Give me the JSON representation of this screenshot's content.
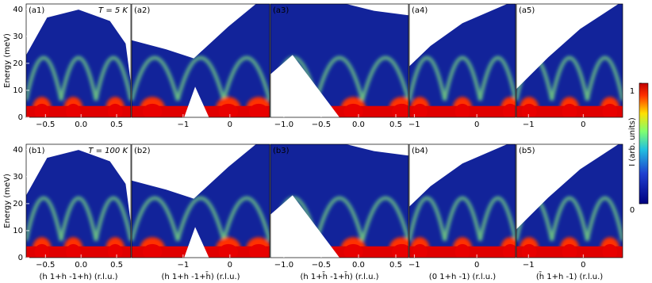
{
  "chart_data": [
    {
      "type": "heatmap",
      "label": "(a1)",
      "annotation": "T = 5 K",
      "ylabel": "Energy (meV)",
      "xlim": [
        -0.77,
        0.7
      ],
      "xticks": [
        {
          "value": -0.5,
          "label": "−0.5"
        },
        {
          "value": 0,
          "label": "0.0"
        },
        {
          "value": 0.5,
          "label": "0.5"
        }
      ],
      "ylim": [
        0,
        42
      ],
      "yticks": [
        0,
        10,
        20,
        30,
        40
      ]
    },
    {
      "type": "heatmap",
      "label": "(a2)",
      "xlim": [
        -2.1,
        0.85
      ],
      "xticks": [
        {
          "value": -1,
          "label": "−1"
        },
        0
      ],
      "ylim": [
        0,
        42
      ]
    },
    {
      "type": "heatmap",
      "label": "(a3)",
      "xlim": [
        -1.18,
        0.67
      ],
      "xticks": [
        {
          "value": -1,
          "label": "−1.0"
        },
        {
          "value": -0.5,
          "label": "−0.5"
        },
        {
          "value": 0,
          "label": "0.0"
        },
        {
          "value": 0.5,
          "label": "0.5"
        }
      ],
      "ylim": [
        0,
        42
      ]
    },
    {
      "type": "heatmap",
      "label": "(a4)",
      "xlim": [
        -1.08,
        0.62
      ],
      "xticks": [
        {
          "value": -1,
          "label": "−1"
        },
        0
      ],
      "ylim": [
        0,
        42
      ]
    },
    {
      "type": "heatmap",
      "label": "(a5)",
      "xlim": [
        -1.22,
        0.72
      ],
      "xticks": [
        {
          "value": -1,
          "label": "−1"
        },
        0
      ],
      "ylim": [
        0,
        42
      ]
    },
    {
      "type": "heatmap",
      "label": "(b1)",
      "annotation": "T = 100 K",
      "ylabel": "Energy (meV)",
      "xlabel": "(h 1+h -1+h) (r.l.u.)",
      "xlim": [
        -0.77,
        0.7
      ],
      "xticks": [
        {
          "value": -0.5,
          "label": "−0.5"
        },
        {
          "value": 0,
          "label": "0.0"
        },
        {
          "value": 0.5,
          "label": "0.5"
        }
      ],
      "ylim": [
        0,
        42
      ],
      "yticks": [
        0,
        10,
        20,
        30,
        40
      ]
    },
    {
      "type": "heatmap",
      "label": "(b2)",
      "xlabel": "(h 1+h -1+h̄) (r.l.u.)",
      "xlim": [
        -2.1,
        0.85
      ],
      "xticks": [
        {
          "value": -1,
          "label": "−1"
        },
        0
      ],
      "ylim": [
        0,
        42
      ]
    },
    {
      "type": "heatmap",
      "label": "(b3)",
      "xlabel": "(h 1+h̄ -1+h̄) (r.l.u.)",
      "xlim": [
        -1.18,
        0.67
      ],
      "xticks": [
        {
          "value": -1,
          "label": "−1.0"
        },
        {
          "value": -0.5,
          "label": "−0.5"
        },
        {
          "value": 0,
          "label": "0.0"
        },
        {
          "value": 0.5,
          "label": "0.5"
        }
      ],
      "ylim": [
        0,
        42
      ]
    },
    {
      "type": "heatmap",
      "label": "(b4)",
      "xlabel": "(0 1+h -1) (r.l.u.)",
      "xlim": [
        -1.08,
        0.62
      ],
      "xticks": [
        {
          "value": -1,
          "label": "−1"
        },
        0
      ],
      "ylim": [
        0,
        42
      ]
    },
    {
      "type": "heatmap",
      "label": "(b5)",
      "xlabel": "(h̄ 1+h -1) (r.l.u.)",
      "xlim": [
        -1.22,
        0.72
      ],
      "xticks": [
        {
          "value": -1,
          "label": "−1"
        },
        0
      ],
      "ylim": [
        0,
        42
      ]
    }
  ],
  "colorbar": {
    "label": "I (arb. units)",
    "lim": [
      0,
      1
    ],
    "ticks": [
      0,
      1
    ]
  }
}
